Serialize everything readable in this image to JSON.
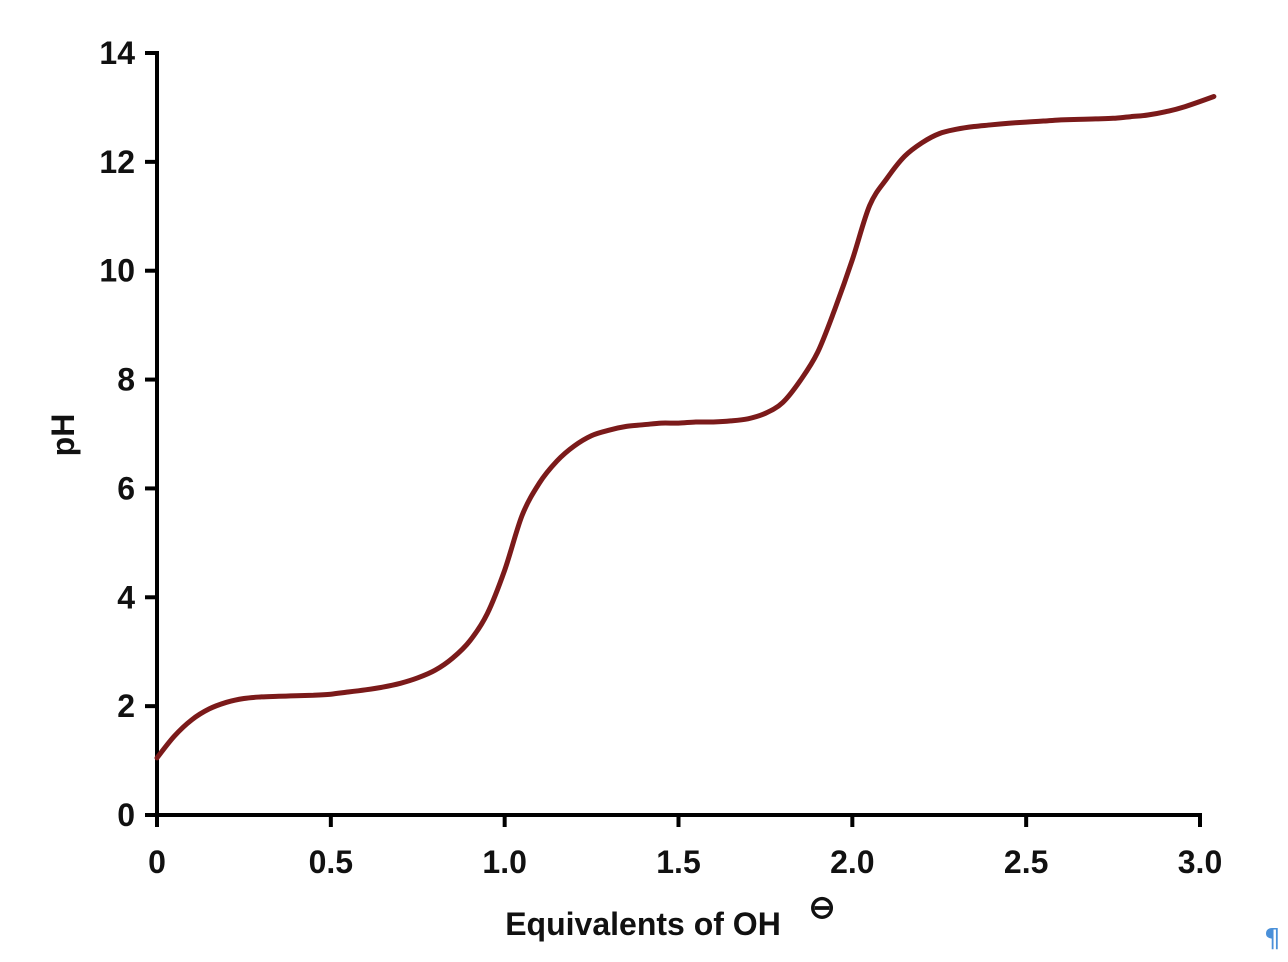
{
  "chart_data": {
    "type": "line",
    "title": "",
    "xlabel": "Equivalents of OH",
    "xlabel_superscript": "⊖",
    "ylabel": "pH",
    "xlim": [
      0,
      3.0
    ],
    "ylim": [
      0,
      14
    ],
    "x_ticks": [
      "0",
      "0.5",
      "1.0",
      "1.5",
      "2.0",
      "2.5",
      "3.0"
    ],
    "x_tick_values": [
      0,
      0.5,
      1.0,
      1.5,
      2.0,
      2.5,
      3.0
    ],
    "y_ticks": [
      "0",
      "2",
      "4",
      "6",
      "8",
      "10",
      "12",
      "14"
    ],
    "y_tick_values": [
      0,
      2,
      4,
      6,
      8,
      10,
      12,
      14
    ],
    "grid": false,
    "series": [
      {
        "color": "#7b1a1a",
        "x": [
          0.0,
          0.05,
          0.1,
          0.15,
          0.2,
          0.25,
          0.3,
          0.35,
          0.4,
          0.45,
          0.5,
          0.55,
          0.6,
          0.65,
          0.7,
          0.75,
          0.8,
          0.85,
          0.9,
          0.95,
          1.0,
          1.05,
          1.1,
          1.15,
          1.2,
          1.25,
          1.3,
          1.35,
          1.4,
          1.45,
          1.5,
          1.55,
          1.6,
          1.65,
          1.7,
          1.75,
          1.8,
          1.85,
          1.9,
          1.95,
          2.0,
          2.05,
          2.1,
          2.15,
          2.2,
          2.25,
          2.3,
          2.35,
          2.4,
          2.45,
          2.5,
          2.55,
          2.6,
          2.65,
          2.7,
          2.75,
          2.8,
          2.85,
          2.9,
          2.95,
          3.04
        ],
        "y": [
          1.05,
          1.45,
          1.75,
          1.95,
          2.07,
          2.14,
          2.17,
          2.18,
          2.19,
          2.2,
          2.22,
          2.26,
          2.3,
          2.35,
          2.42,
          2.52,
          2.66,
          2.88,
          3.2,
          3.7,
          4.5,
          5.5,
          6.1,
          6.5,
          6.78,
          6.97,
          7.07,
          7.14,
          7.17,
          7.2,
          7.2,
          7.22,
          7.22,
          7.24,
          7.28,
          7.38,
          7.58,
          7.98,
          8.5,
          9.3,
          10.2,
          11.2,
          11.7,
          12.1,
          12.35,
          12.52,
          12.6,
          12.65,
          12.68,
          12.71,
          12.73,
          12.75,
          12.77,
          12.78,
          12.79,
          12.8,
          12.83,
          12.86,
          12.92,
          13.0,
          13.2
        ]
      }
    ]
  },
  "corner_mark": "¶"
}
